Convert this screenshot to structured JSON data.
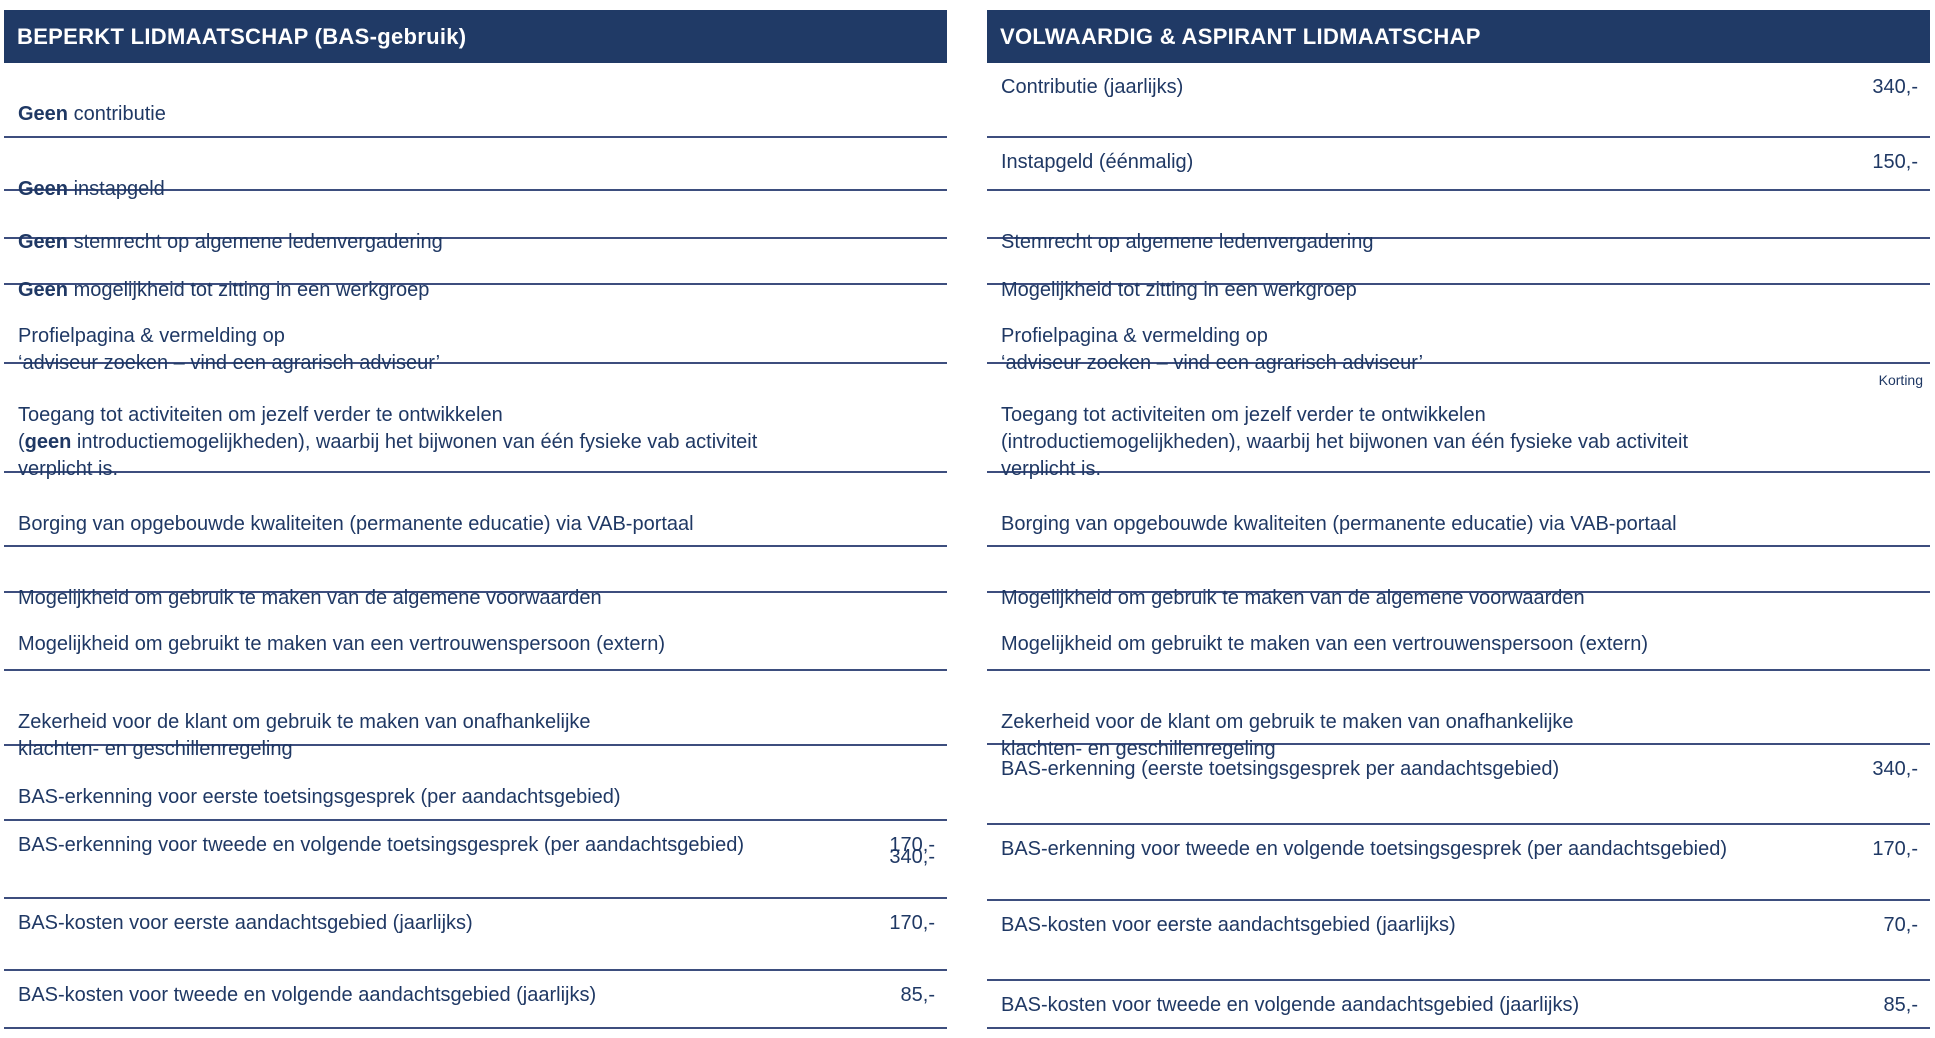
{
  "colors": {
    "header_bg": "#203A66",
    "body_text": "#1F3864",
    "line": "#3D4E7E"
  },
  "left_panel": {
    "title": "BEPERKT LIDMAATSCHAP (BAS-gebruik)",
    "rows": [
      {
        "bold": "Geen",
        "text": " contributie"
      },
      {
        "bold": "Geen",
        "text": " instapgeld"
      },
      {
        "bold": "Geen",
        "text": " stemrecht op algemene ledenvergadering"
      },
      {
        "bold": "Geen",
        "text": " mogelijkheid tot zitting in een werkgroep"
      },
      {
        "text": "Profielpagina & vermelding op\n‘adviseur zoeken – vind een agrarisch adviseur’"
      },
      {
        "pre": "Toegang tot activiteiten om jezelf verder te ontwikkelen\n(",
        "bold": "geen",
        "text": " introductiemogelijkheden), waarbij het bijwonen van één fysieke vab activiteit\nverplicht is."
      },
      {
        "text": "Borging van opgebouwde kwaliteiten (permanente educatie) via VAB-portaal"
      },
      {
        "text": "Mogelijkheid om gebruik te maken van de algemene voorwaarden"
      },
      {
        "text": "Mogelijkheid om gebruikt te maken van een vertrouwenspersoon (extern)"
      },
      {
        "text": "Zekerheid voor de klant om gebruik te maken van onafhankelijke\nklachten- en geschillenregeling"
      },
      {
        "text": "BAS-erkenning voor eerste toetsingsgesprek (per aandachtsgebied)",
        "price": "340,-"
      },
      {
        "text": "BAS-erkenning voor tweede en volgende toetsingsgesprek (per aandachtsgebied)",
        "price": "170,-"
      },
      {
        "text": "BAS-kosten voor eerste aandachtsgebied (jaarlijks)",
        "price": "170,-"
      },
      {
        "text": "BAS-kosten voor tweede en volgende aandachtsgebied (jaarlijks)",
        "price": "85,-"
      }
    ]
  },
  "right_panel": {
    "title": "VOLWAARDIG & ASPIRANT LIDMAATSCHAP",
    "rows": [
      {
        "text": "Contributie (jaarlijks)",
        "price": "340,-"
      },
      {
        "text": "Instapgeld (éénmalig)",
        "price": "150,-"
      },
      {
        "text": "Stemrecht op algemene ledenvergadering"
      },
      {
        "text": "Mogelijkheid tot zitting in een werkgroep"
      },
      {
        "text": "Profielpagina & vermelding op\n‘adviseur zoeken – vind een agrarisch adviseur’"
      },
      {
        "text": "Toegang tot activiteiten om jezelf verder te ontwikkelen\n(introductiemogelijkheden), waarbij het bijwonen van één fysieke vab activiteit\nverplicht is.",
        "badge": "Korting"
      },
      {
        "text": "Borging van opgebouwde kwaliteiten (permanente educatie) via VAB-portaal"
      },
      {
        "text": "Mogelijkheid om gebruik te maken van de algemene voorwaarden"
      },
      {
        "text": "Mogelijkheid om gebruikt te maken van een vertrouwenspersoon (extern)"
      },
      {
        "text": "Zekerheid voor de klant om gebruik te maken van onafhankelijke\nklachten- en geschillenregeling"
      },
      {
        "text": "BAS-erkenning (eerste toetsingsgesprek per aandachtsgebied)",
        "price": "340,-"
      },
      {
        "text": "BAS-erkenning voor tweede en volgende toetsingsgesprek (per aandachtsgebied)",
        "price": "170,-"
      },
      {
        "text": "BAS-kosten voor eerste aandachtsgebied (jaarlijks)",
        "price": "70,-"
      },
      {
        "text": "BAS-kosten voor tweede en volgende aandachtsgebied (jaarlijks)",
        "price": "85,-"
      }
    ]
  }
}
